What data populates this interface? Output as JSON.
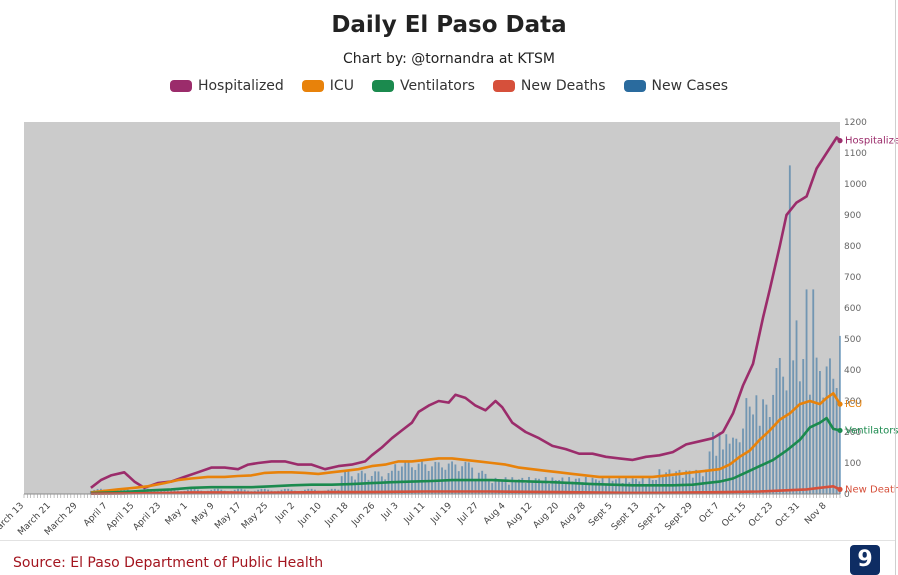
{
  "chart_data": {
    "type": "line",
    "title": "Daily El Paso Data",
    "subtitle": "Chart by: @tornandra at KTSM",
    "source": "Source: El Paso Department of Public Health",
    "ylim": [
      0,
      1200
    ],
    "yticks": [
      0,
      100,
      200,
      300,
      400,
      500,
      600,
      700,
      800,
      900,
      1000,
      1100,
      1200
    ],
    "xlim_day": [
      0,
      241
    ],
    "x_ticks": [
      {
        "label": "March 13",
        "day": 0
      },
      {
        "label": "March 21",
        "day": 8
      },
      {
        "label": "March 29",
        "day": 16
      },
      {
        "label": "April 7",
        "day": 25
      },
      {
        "label": "April 15",
        "day": 33
      },
      {
        "label": "April 23",
        "day": 41
      },
      {
        "label": "May 1",
        "day": 49
      },
      {
        "label": "May 9",
        "day": 57
      },
      {
        "label": "May 17",
        "day": 65
      },
      {
        "label": "May 25",
        "day": 73
      },
      {
        "label": "Jun 2",
        "day": 81
      },
      {
        "label": "Jun 10",
        "day": 89
      },
      {
        "label": "Jun 18",
        "day": 97
      },
      {
        "label": "Jun 26",
        "day": 105
      },
      {
        "label": "Jul 3",
        "day": 112
      },
      {
        "label": "Jul 11",
        "day": 120
      },
      {
        "label": "Jul 19",
        "day": 128
      },
      {
        "label": "Jul 27",
        "day": 136
      },
      {
        "label": "Aug 4",
        "day": 144
      },
      {
        "label": "Aug 12",
        "day": 152
      },
      {
        "label": "Aug 20",
        "day": 160
      },
      {
        "label": "Aug 28",
        "day": 168
      },
      {
        "label": "Sept 5",
        "day": 176
      },
      {
        "label": "Sept 13",
        "day": 184
      },
      {
        "label": "Sept 21",
        "day": 192
      },
      {
        "label": "Sept 29",
        "day": 200
      },
      {
        "label": "Oct 7",
        "day": 208
      },
      {
        "label": "Oct 15",
        "day": 216
      },
      {
        "label": "Oct 23",
        "day": 224
      },
      {
        "label": "Oct 31",
        "day": 232
      },
      {
        "label": "Nov 8",
        "day": 240
      }
    ],
    "series": [
      {
        "name": "Hospitalized",
        "color": "#9b2c6b",
        "type": "line",
        "end_label": "Hospitalized",
        "points": [
          [
            20,
            20
          ],
          [
            23,
            45
          ],
          [
            26,
            60
          ],
          [
            30,
            70
          ],
          [
            33,
            40
          ],
          [
            36,
            20
          ],
          [
            40,
            35
          ],
          [
            44,
            40
          ],
          [
            48,
            55
          ],
          [
            52,
            70
          ],
          [
            56,
            85
          ],
          [
            60,
            85
          ],
          [
            64,
            80
          ],
          [
            67,
            95
          ],
          [
            70,
            100
          ],
          [
            74,
            105
          ],
          [
            78,
            105
          ],
          [
            82,
            95
          ],
          [
            86,
            95
          ],
          [
            90,
            80
          ],
          [
            94,
            90
          ],
          [
            98,
            95
          ],
          [
            102,
            105
          ],
          [
            104,
            125
          ],
          [
            107,
            150
          ],
          [
            110,
            180
          ],
          [
            113,
            205
          ],
          [
            116,
            230
          ],
          [
            118,
            265
          ],
          [
            121,
            285
          ],
          [
            124,
            300
          ],
          [
            127,
            295
          ],
          [
            129,
            320
          ],
          [
            132,
            310
          ],
          [
            135,
            285
          ],
          [
            138,
            270
          ],
          [
            141,
            300
          ],
          [
            143,
            280
          ],
          [
            146,
            230
          ],
          [
            150,
            200
          ],
          [
            154,
            180
          ],
          [
            158,
            155
          ],
          [
            162,
            145
          ],
          [
            166,
            130
          ],
          [
            170,
            130
          ],
          [
            174,
            120
          ],
          [
            178,
            115
          ],
          [
            182,
            110
          ],
          [
            186,
            120
          ],
          [
            190,
            125
          ],
          [
            194,
            135
          ],
          [
            198,
            160
          ],
          [
            202,
            170
          ],
          [
            206,
            180
          ],
          [
            209,
            200
          ],
          [
            212,
            260
          ],
          [
            215,
            350
          ],
          [
            218,
            420
          ],
          [
            221,
            570
          ],
          [
            223,
            660
          ],
          [
            226,
            800
          ],
          [
            228,
            900
          ],
          [
            231,
            940
          ],
          [
            234,
            960
          ],
          [
            237,
            1050
          ],
          [
            240,
            1100
          ],
          [
            243,
            1150
          ],
          [
            244,
            1140
          ]
        ]
      },
      {
        "name": "ICU",
        "color": "#e8820a",
        "type": "line",
        "end_label": "ICU",
        "points": [
          [
            20,
            5
          ],
          [
            24,
            10
          ],
          [
            28,
            15
          ],
          [
            33,
            20
          ],
          [
            37,
            25
          ],
          [
            42,
            35
          ],
          [
            46,
            45
          ],
          [
            50,
            50
          ],
          [
            55,
            55
          ],
          [
            60,
            55
          ],
          [
            64,
            58
          ],
          [
            68,
            60
          ],
          [
            72,
            68
          ],
          [
            76,
            70
          ],
          [
            80,
            70
          ],
          [
            84,
            68
          ],
          [
            88,
            65
          ],
          [
            92,
            70
          ],
          [
            96,
            75
          ],
          [
            100,
            80
          ],
          [
            104,
            90
          ],
          [
            108,
            95
          ],
          [
            112,
            105
          ],
          [
            116,
            105
          ],
          [
            120,
            110
          ],
          [
            124,
            115
          ],
          [
            128,
            115
          ],
          [
            132,
            110
          ],
          [
            136,
            105
          ],
          [
            140,
            100
          ],
          [
            144,
            95
          ],
          [
            148,
            85
          ],
          [
            152,
            80
          ],
          [
            156,
            75
          ],
          [
            160,
            70
          ],
          [
            164,
            65
          ],
          [
            168,
            60
          ],
          [
            172,
            55
          ],
          [
            176,
            55
          ],
          [
            180,
            55
          ],
          [
            184,
            55
          ],
          [
            188,
            55
          ],
          [
            192,
            60
          ],
          [
            196,
            65
          ],
          [
            200,
            70
          ],
          [
            204,
            75
          ],
          [
            208,
            80
          ],
          [
            211,
            95
          ],
          [
            214,
            120
          ],
          [
            217,
            140
          ],
          [
            220,
            175
          ],
          [
            223,
            205
          ],
          [
            226,
            240
          ],
          [
            229,
            260
          ],
          [
            232,
            290
          ],
          [
            235,
            300
          ],
          [
            238,
            290
          ],
          [
            240,
            310
          ],
          [
            242,
            325
          ],
          [
            244,
            290
          ]
        ]
      },
      {
        "name": "Ventilators",
        "color": "#1b8a4e",
        "type": "line",
        "end_label": "Ventilators",
        "points": [
          [
            20,
            3
          ],
          [
            26,
            5
          ],
          [
            32,
            8
          ],
          [
            38,
            12
          ],
          [
            44,
            15
          ],
          [
            50,
            20
          ],
          [
            56,
            22
          ],
          [
            62,
            22
          ],
          [
            68,
            22
          ],
          [
            74,
            25
          ],
          [
            80,
            28
          ],
          [
            86,
            30
          ],
          [
            92,
            30
          ],
          [
            98,
            32
          ],
          [
            104,
            35
          ],
          [
            110,
            38
          ],
          [
            116,
            40
          ],
          [
            122,
            42
          ],
          [
            128,
            45
          ],
          [
            134,
            45
          ],
          [
            140,
            45
          ],
          [
            146,
            42
          ],
          [
            152,
            40
          ],
          [
            158,
            38
          ],
          [
            164,
            35
          ],
          [
            170,
            32
          ],
          [
            176,
            30
          ],
          [
            182,
            28
          ],
          [
            188,
            28
          ],
          [
            194,
            28
          ],
          [
            200,
            30
          ],
          [
            204,
            35
          ],
          [
            208,
            40
          ],
          [
            212,
            50
          ],
          [
            216,
            70
          ],
          [
            220,
            90
          ],
          [
            224,
            110
          ],
          [
            228,
            140
          ],
          [
            232,
            175
          ],
          [
            235,
            215
          ],
          [
            238,
            230
          ],
          [
            240,
            245
          ],
          [
            242,
            210
          ],
          [
            244,
            205
          ]
        ]
      },
      {
        "name": "New Deaths",
        "color": "#d6503b",
        "type": "line",
        "end_label": "New Deaths",
        "points": [
          [
            20,
            1
          ],
          [
            30,
            2
          ],
          [
            40,
            3
          ],
          [
            50,
            5
          ],
          [
            60,
            5
          ],
          [
            70,
            4
          ],
          [
            80,
            5
          ],
          [
            90,
            6
          ],
          [
            100,
            6
          ],
          [
            110,
            7
          ],
          [
            120,
            8
          ],
          [
            130,
            8
          ],
          [
            140,
            8
          ],
          [
            150,
            7
          ],
          [
            160,
            6
          ],
          [
            170,
            5
          ],
          [
            180,
            4
          ],
          [
            190,
            4
          ],
          [
            200,
            5
          ],
          [
            210,
            6
          ],
          [
            220,
            8
          ],
          [
            228,
            12
          ],
          [
            234,
            15
          ],
          [
            238,
            20
          ],
          [
            242,
            25
          ],
          [
            244,
            15
          ]
        ]
      },
      {
        "name": "New Cases",
        "color": "#2a6b9e",
        "type": "bar",
        "notable_values": [
          {
            "day": 229,
            "value": 1060
          },
          {
            "day": 234,
            "value": 660
          },
          {
            "day": 231,
            "value": 560
          },
          {
            "day": 236,
            "value": 660
          },
          {
            "day": 244,
            "value": 510
          }
        ]
      }
    ]
  }
}
